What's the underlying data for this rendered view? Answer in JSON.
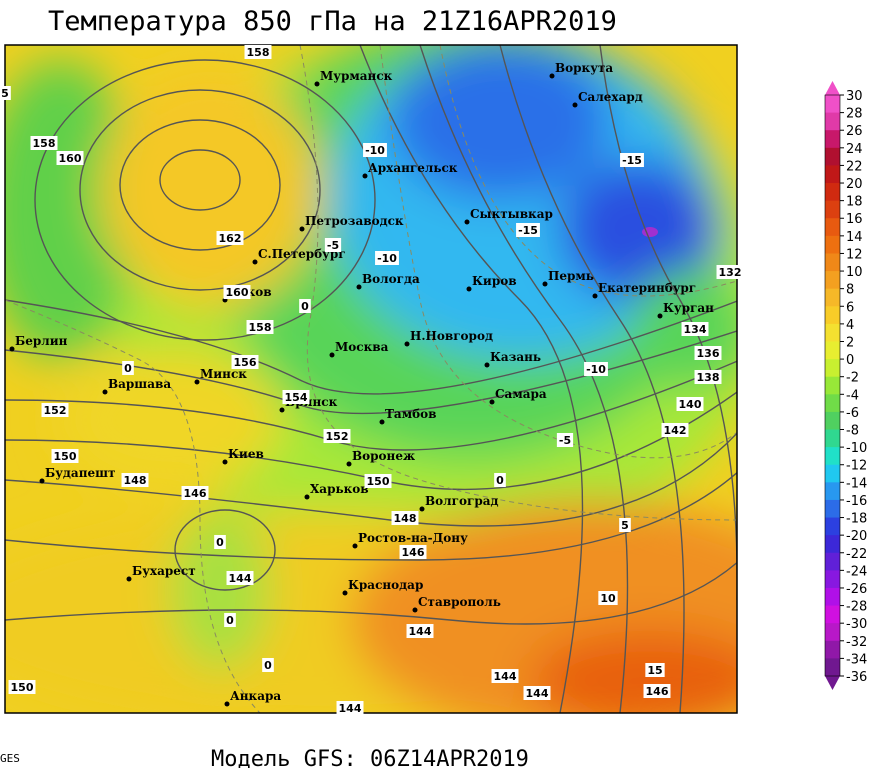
{
  "header": {
    "title": "Температура 850 гПа на 21Z16APR2019"
  },
  "footer": {
    "model": "Модель GFS: 06Z14APR2019",
    "credit": "GES"
  },
  "cities": [
    "Мурманск",
    "Воркута",
    "Салехард",
    "Архангельск",
    "Петрозаводск",
    "Сыктывкар",
    "С.Петербург",
    "Вологда",
    "Киров",
    "Пермь",
    "Екатеринбург",
    "Курган",
    "Псков",
    "Берлин",
    "Москва",
    "Н.Новгород",
    "Казань",
    "Минск",
    "Варшава",
    "Брянск",
    "Самара",
    "Тамбов",
    "Киев",
    "Воронеж",
    "Будапешт",
    "Харьков",
    "Волгоград",
    "Ростов-на-Дону",
    "Бухарест",
    "Краснодар",
    "Ставрополь",
    "Анкара"
  ],
  "height_labels": [
    "158",
    "158",
    "160",
    "162",
    "160",
    "158",
    "156",
    "154",
    "152",
    "152",
    "150",
    "150",
    "148",
    "146",
    "148",
    "146",
    "144",
    "144",
    "144",
    "144",
    "146",
    "144",
    "150",
    "132",
    "134",
    "136",
    "138",
    "140",
    "142"
  ],
  "temperature_labels": [
    "-10",
    "-5",
    "-10",
    "0",
    "-15",
    "-15",
    "-10",
    "-5",
    "0",
    "5",
    "10",
    "15",
    "0",
    "0",
    "0",
    "0",
    "5"
  ],
  "colorbar": {
    "labels": [
      30,
      28,
      26,
      24,
      22,
      20,
      18,
      16,
      14,
      12,
      10,
      8,
      6,
      4,
      2,
      0,
      -2,
      -4,
      -6,
      -8,
      -10,
      -12,
      -14,
      -16,
      -18,
      -20,
      -22,
      -24,
      -26,
      -28,
      -30,
      -32,
      -34,
      -36
    ],
    "colors": [
      "#f050c8",
      "#e03aa8",
      "#c8186a",
      "#b01030",
      "#c01818",
      "#d02a10",
      "#dc4010",
      "#e85a10",
      "#ee7010",
      "#f08818",
      "#f4a020",
      "#f6b828",
      "#f8cc28",
      "#f4e030",
      "#e8ee30",
      "#c8f030",
      "#98e838",
      "#70dc48",
      "#50d060",
      "#30d890",
      "#20e0c8",
      "#20c8f0",
      "#2898f0",
      "#2c6ce8",
      "#2c40e0",
      "#3c28d8",
      "#6020d8",
      "#8818e0",
      "#b010e8",
      "#d010e0",
      "#b818c8",
      "#9018a8",
      "#701890"
    ]
  }
}
